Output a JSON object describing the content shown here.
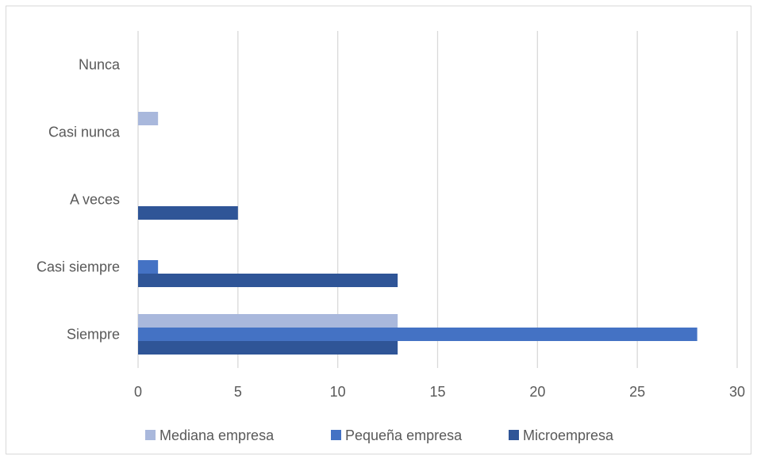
{
  "chart_data": {
    "type": "bar",
    "orientation": "horizontal",
    "categories": [
      "Siempre",
      "Casi siempre",
      "A veces",
      "Casi nunca",
      "Nunca"
    ],
    "series": [
      {
        "name": "Microempresa",
        "color": "#2f5597",
        "values": [
          13,
          13,
          5,
          0,
          0
        ]
      },
      {
        "name": "Pequeña empresa",
        "color": "#4472c4",
        "values": [
          28,
          1,
          0,
          0,
          0
        ]
      },
      {
        "name": "Mediana empresa",
        "color": "#a9b8dc",
        "values": [
          13,
          0,
          0,
          1,
          0
        ]
      }
    ],
    "xlim": [
      0,
      30
    ],
    "xticks": [
      "0",
      "5",
      "10",
      "15",
      "20",
      "25",
      "30"
    ],
    "legend_order": [
      "Mediana empresa",
      "Pequeña empresa",
      "Microempresa"
    ],
    "legend_position": "bottom",
    "grid": "vertical"
  }
}
